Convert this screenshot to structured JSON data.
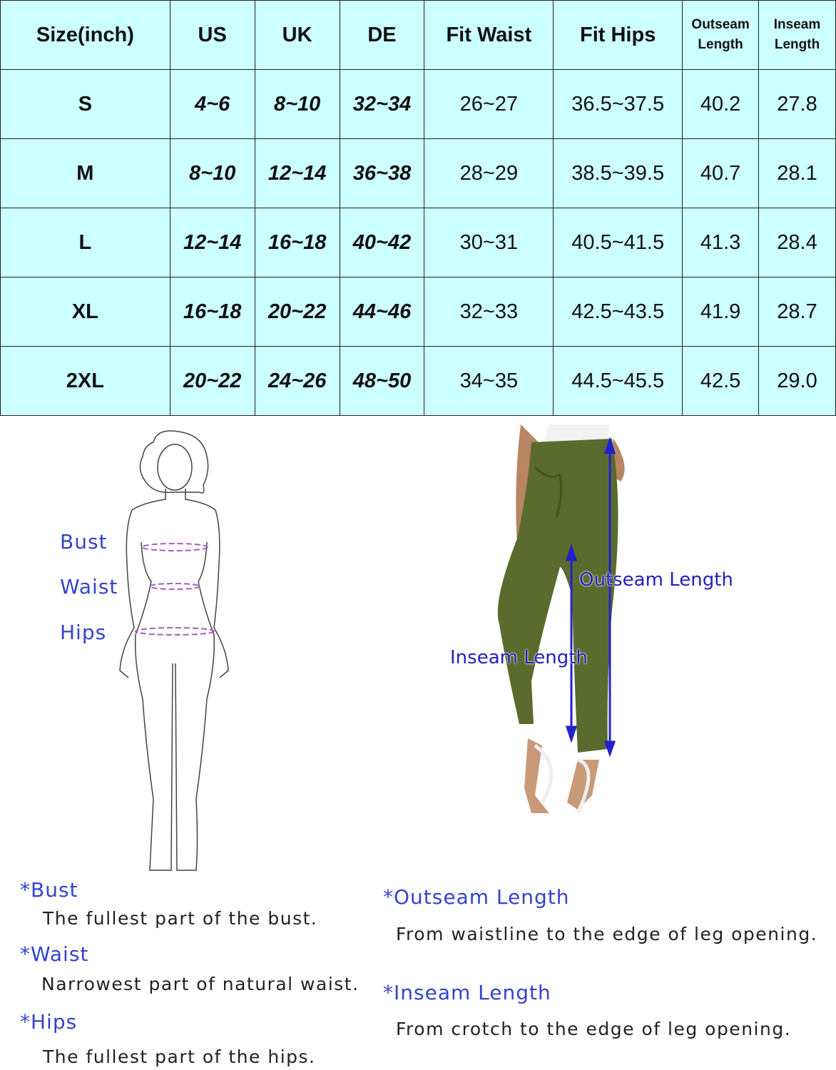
{
  "table": {
    "headers": [
      "Size(inch)",
      "US",
      "UK",
      "DE",
      "Fit Waist",
      "Fit Hips",
      "Outseam Length",
      "Inseam Length"
    ],
    "rows": [
      [
        "S",
        "4~6",
        "8~10",
        "32~34",
        "26~27",
        "36.5~37.5",
        "40.2",
        "27.8"
      ],
      [
        "M",
        "8~10",
        "12~14",
        "36~38",
        "28~29",
        "38.5~39.5",
        "40.7",
        "28.1"
      ],
      [
        "L",
        "12~14",
        "16~18",
        "40~42",
        "30~31",
        "40.5~41.5",
        "41.3",
        "28.4"
      ],
      [
        "XL",
        "16~18",
        "20~22",
        "44~46",
        "32~33",
        "42.5~43.5",
        "41.9",
        "28.7"
      ],
      [
        "2XL",
        "20~22",
        "24~26",
        "48~50",
        "34~35",
        "44.5~45.5",
        "42.5",
        "29.0"
      ]
    ]
  },
  "figure_labels": {
    "bust": "Bust",
    "waist": "Waist",
    "hips": "Hips"
  },
  "pants_labels": {
    "outseam": "Outseam Length",
    "inseam": "Inseam Length"
  },
  "definitions": [
    {
      "term": "*Bust",
      "text": "The fullest part of the bust."
    },
    {
      "term": "*Waist",
      "text": "Narrowest part of natural waist."
    },
    {
      "term": "*Hips",
      "text": "The fullest part of the hips."
    },
    {
      "term": "*Outseam Length",
      "text": "From waistline to the edge of leg opening."
    },
    {
      "term": "*Inseam Length",
      "text": "From crotch to the edge of leg opening."
    }
  ],
  "colors": {
    "table_bg": "#ccffff",
    "label_blue": "#3344cc",
    "pants_green": "#5b6b2e",
    "measure_line": "#a060c0"
  }
}
